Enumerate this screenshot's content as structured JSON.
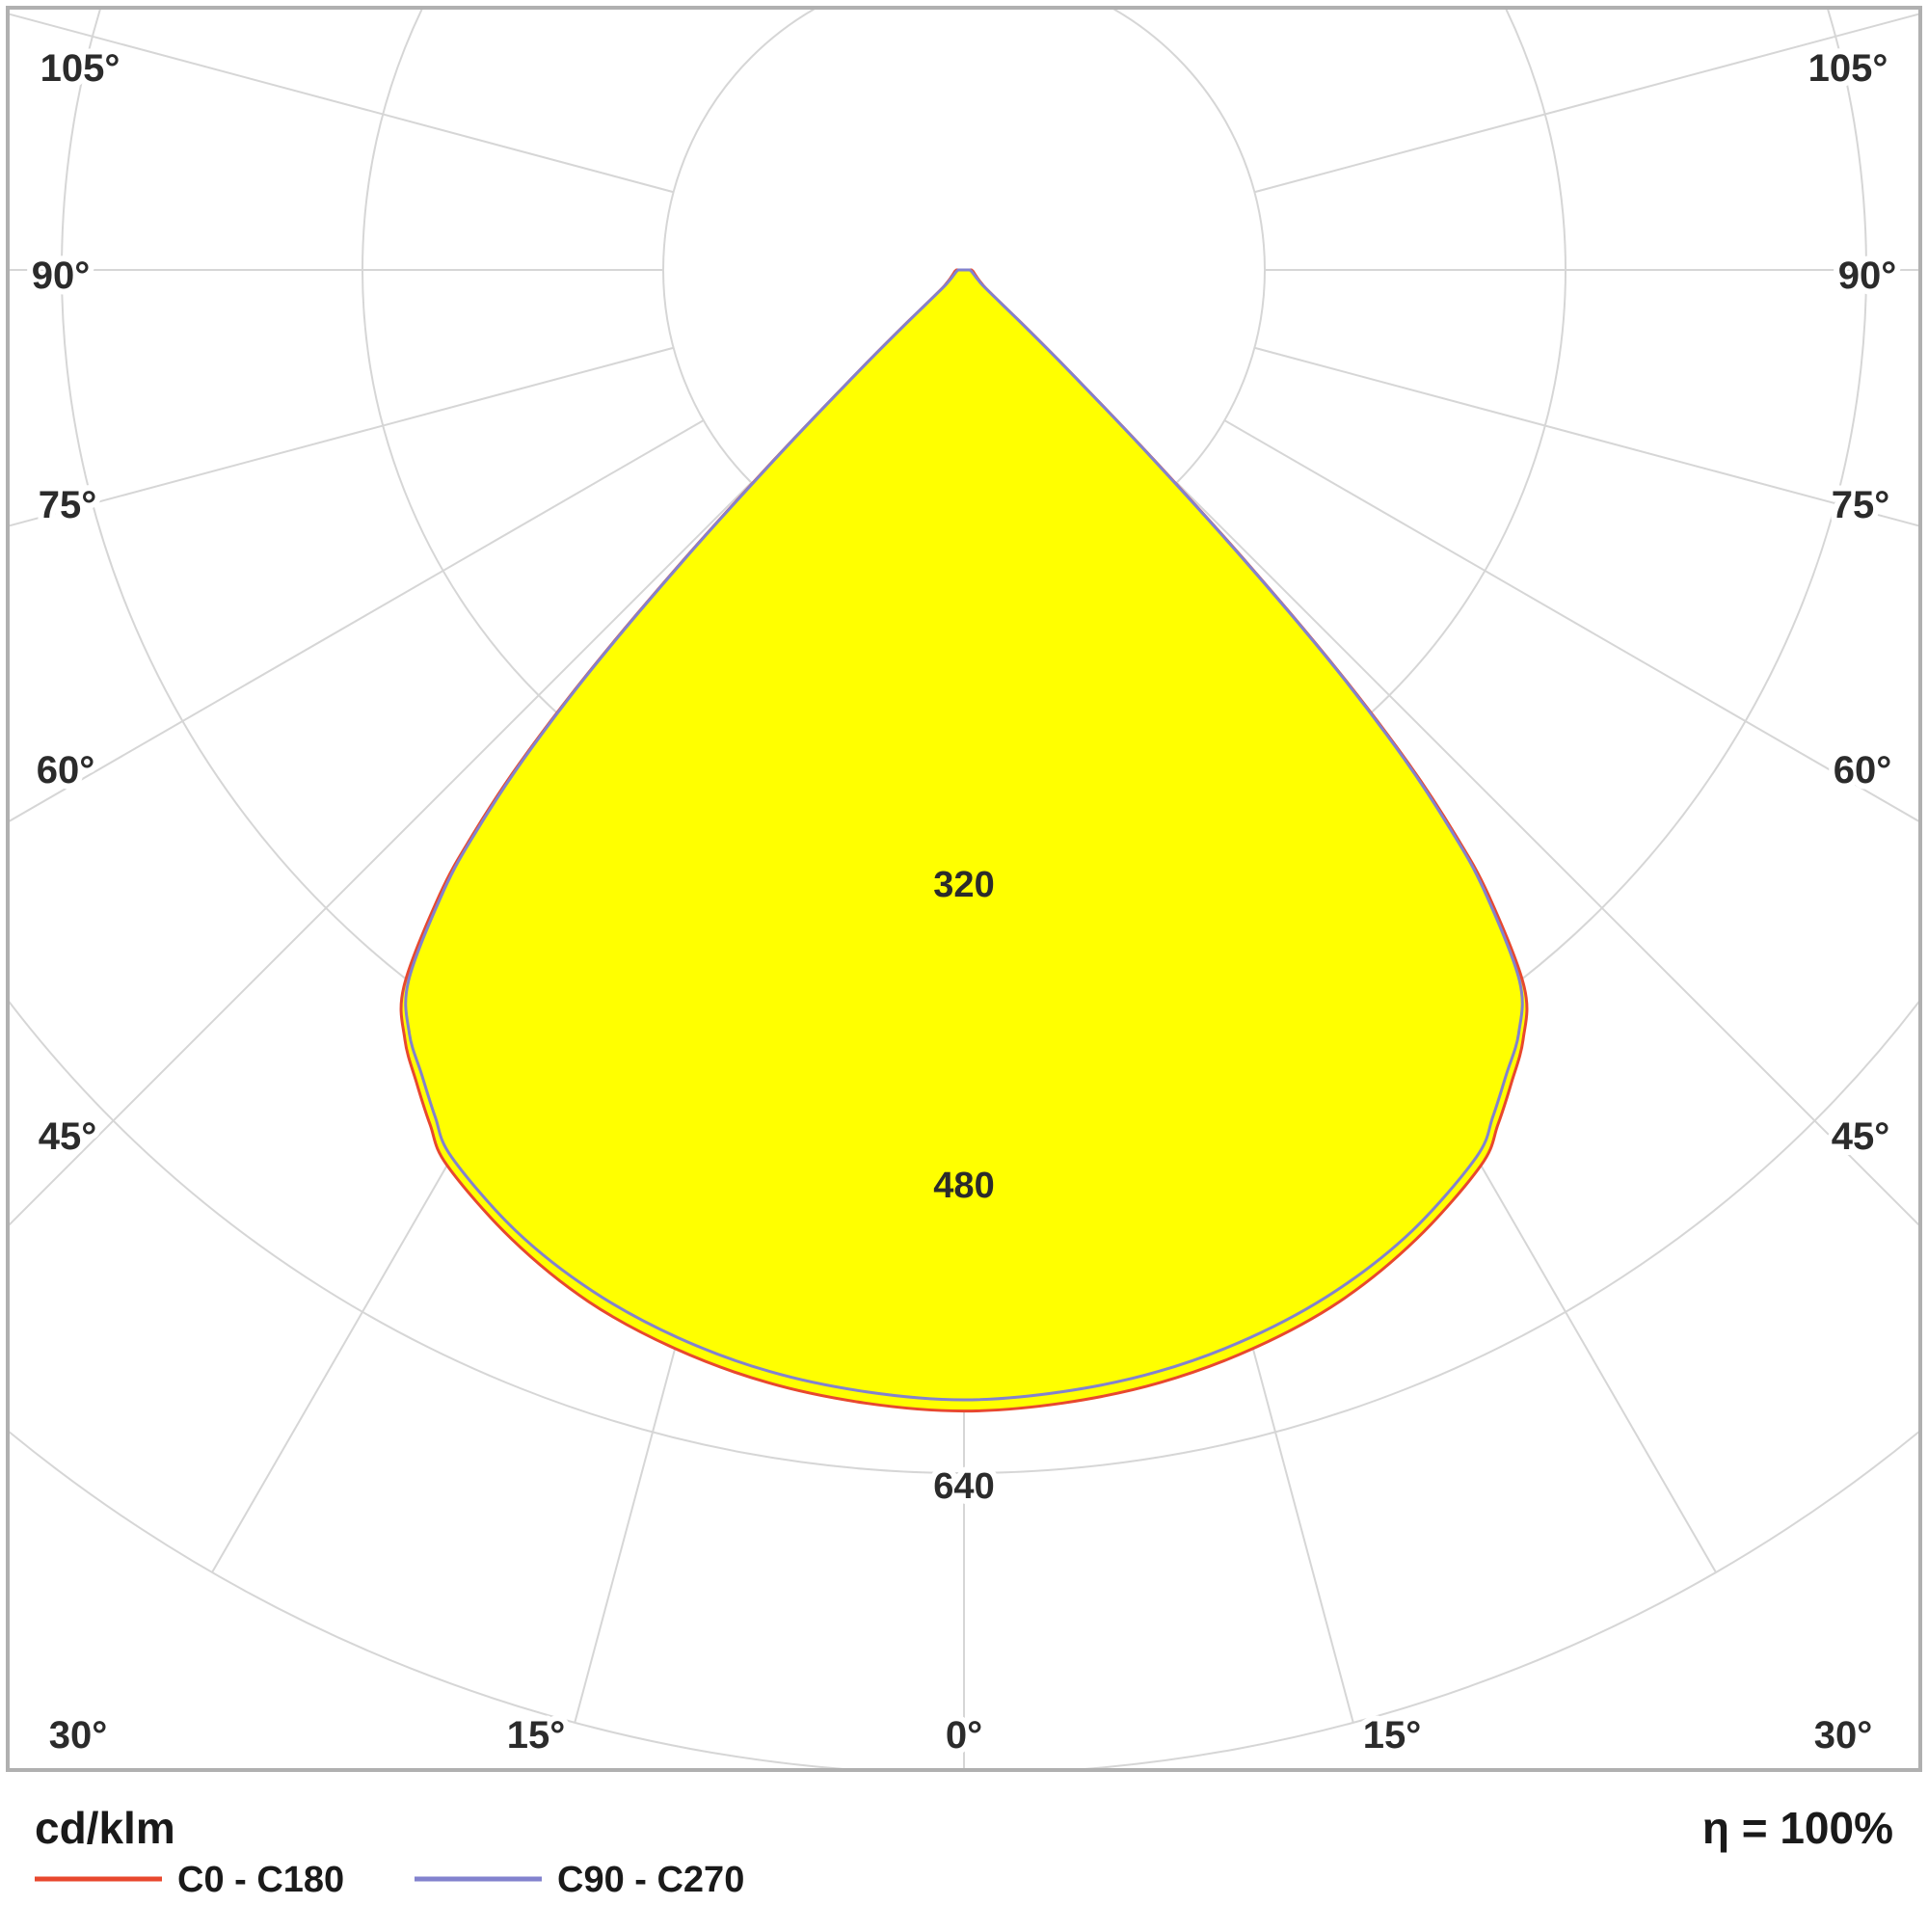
{
  "chart_data": {
    "type": "polar",
    "subtype": "photometric-luminous-intensity-distribution",
    "units_label": "cd/klm",
    "efficiency_label": "η = 100%",
    "fill_color": "#ffff00",
    "grid": {
      "color": "#d6d6d6",
      "frame_color": "#b0b0b0",
      "circle_step": 160,
      "circle_values": [
        160,
        320,
        480,
        640,
        800
      ],
      "circle_tick_labels": [
        {
          "value": 320,
          "text": "320",
          "halo": "#ffff00"
        },
        {
          "value": 480,
          "text": "480",
          "halo": "#ffff00"
        },
        {
          "value": 640,
          "text": "640",
          "halo": "#ffffff"
        }
      ],
      "angle_step_deg": 15,
      "angle_max_deg": 105
    },
    "angle_labels": {
      "suffix": "°",
      "left": [
        105,
        90,
        75,
        60,
        45
      ],
      "right": [
        105,
        90,
        75,
        60,
        45
      ],
      "bottom": [
        30,
        15,
        0,
        15,
        30
      ]
    },
    "legend": [
      {
        "label": "C0 - C180",
        "color": "#e8482e"
      },
      {
        "label": "C90 - C270",
        "color": "#8282ce"
      }
    ],
    "series": [
      {
        "name": "C0 - C180",
        "color": "#e8482e",
        "points": [
          [
            0,
            607
          ],
          [
            5,
            605
          ],
          [
            10,
            601
          ],
          [
            15,
            594
          ],
          [
            20,
            584
          ],
          [
            25,
            569
          ],
          [
            30,
            550
          ],
          [
            32,
            536
          ],
          [
            34,
            521
          ],
          [
            36,
            506
          ],
          [
            38,
            484
          ],
          [
            40,
            434
          ],
          [
            41,
            399
          ],
          [
            42,
            354
          ],
          [
            43,
            293
          ],
          [
            44,
            218
          ],
          [
            45,
            143
          ],
          [
            46,
            84
          ],
          [
            47,
            48
          ],
          [
            48,
            27
          ],
          [
            50,
            15
          ],
          [
            55,
            10
          ],
          [
            60,
            8
          ],
          [
            70,
            6
          ],
          [
            80,
            5
          ],
          [
            90,
            4
          ]
        ]
      },
      {
        "name": "C90 - C270",
        "color": "#8282ce",
        "points": [
          [
            0,
            601
          ],
          [
            5,
            599
          ],
          [
            10,
            595
          ],
          [
            15,
            588
          ],
          [
            20,
            578
          ],
          [
            25,
            564
          ],
          [
            30,
            545
          ],
          [
            32,
            531
          ],
          [
            34,
            516
          ],
          [
            36,
            502
          ],
          [
            38,
            480
          ],
          [
            40,
            430
          ],
          [
            41,
            395
          ],
          [
            42,
            350
          ],
          [
            43,
            290
          ],
          [
            44,
            215
          ],
          [
            45,
            140
          ],
          [
            46,
            82
          ],
          [
            47,
            46
          ],
          [
            48,
            26
          ],
          [
            50,
            14
          ],
          [
            55,
            9
          ],
          [
            60,
            7
          ],
          [
            70,
            5
          ],
          [
            80,
            4
          ],
          [
            90,
            3
          ]
        ]
      }
    ],
    "radial_axis_max": 800
  }
}
